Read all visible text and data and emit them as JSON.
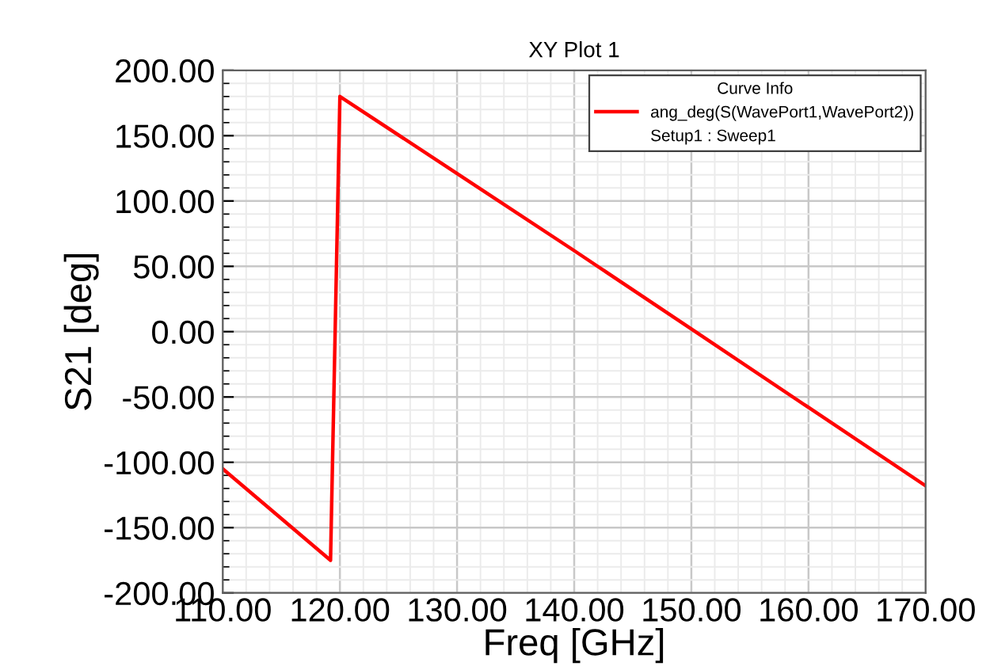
{
  "chart_data": {
    "type": "line",
    "title": "XY Plot 1",
    "xlabel": "Freq [GHz]",
    "ylabel": "S21 [deg]",
    "legend_title": "Curve Info",
    "annotations": [
      "Setup1 : Sweep1"
    ],
    "series": [
      {
        "name": "ang_deg(S(WavePort1,WavePort2))",
        "color": "#ff0000",
        "x": [
          110,
          119.2,
          120,
          130,
          140,
          150,
          160,
          170
        ],
        "values": [
          -105,
          -175,
          180,
          121,
          62,
          2,
          -58,
          -118
        ]
      }
    ],
    "xlim": [
      110,
      170
    ],
    "ylim": [
      -200,
      200
    ],
    "xticks": [
      {
        "value": 110,
        "label": "110.00"
      },
      {
        "value": 120,
        "label": "120.00"
      },
      {
        "value": 130,
        "label": "130.00"
      },
      {
        "value": 140,
        "label": "140.00"
      },
      {
        "value": 150,
        "label": "150.00"
      },
      {
        "value": 160,
        "label": "160.00"
      },
      {
        "value": 170,
        "label": "170.00"
      }
    ],
    "yticks": [
      {
        "value": -200,
        "label": "-200.00"
      },
      {
        "value": -150,
        "label": "-150.00"
      },
      {
        "value": -100,
        "label": "-100.00"
      },
      {
        "value": -50,
        "label": "-50.00"
      },
      {
        "value": 0,
        "label": "0.00"
      },
      {
        "value": 50,
        "label": "50.00"
      },
      {
        "value": 100,
        "label": "100.00"
      },
      {
        "value": 150,
        "label": "150.00"
      },
      {
        "value": 200,
        "label": "200.00"
      }
    ],
    "grid": true,
    "legend": "top right",
    "marker": "none",
    "line_style": "solid"
  }
}
